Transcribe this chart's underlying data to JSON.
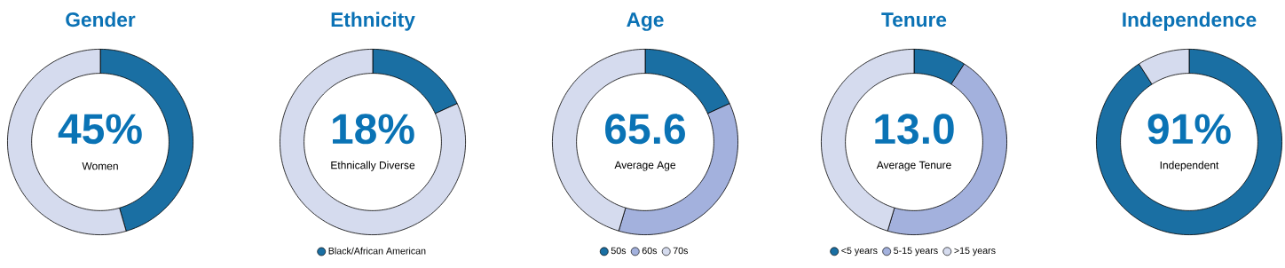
{
  "chart_data": [
    {
      "type": "donut",
      "title": "Gender",
      "categories": [
        null,
        null
      ],
      "values": [
        45.5,
        54.5
      ],
      "colors": [
        "#1a6fa3",
        "#d5dbee"
      ],
      "annotations": [
        "45%",
        "Women"
      ]
    },
    {
      "type": "donut",
      "title": "Ethnicity",
      "categories": [
        "Black/African American",
        null
      ],
      "values": [
        18.2,
        81.8
      ],
      "colors": [
        "#1a6fa3",
        "#d5dbee"
      ],
      "annotations": [
        "18%",
        "Ethnically Diverse"
      ],
      "legend": "bottom"
    },
    {
      "type": "donut",
      "title": "Age",
      "categories": [
        "50s",
        "60s",
        "70s"
      ],
      "values": [
        18.2,
        36.4,
        45.4
      ],
      "colors": [
        "#1a6fa3",
        "#a3b1dd",
        "#d5dbee"
      ],
      "annotations": [
        "65.6",
        "Average Age"
      ],
      "legend": "bottom"
    },
    {
      "type": "donut",
      "title": "Tenure",
      "categories": [
        "<5 years",
        "5-15 years",
        ">15 years"
      ],
      "values": [
        9.1,
        45.5,
        45.4
      ],
      "colors": [
        "#1a6fa3",
        "#a3b1dd",
        "#d5dbee"
      ],
      "annotations": [
        "13.0",
        "Average Tenure"
      ],
      "legend": "bottom"
    },
    {
      "type": "donut",
      "title": "Independence",
      "categories": [
        null,
        null
      ],
      "values": [
        90.9,
        9.1
      ],
      "colors": [
        "#1a6fa3",
        "#d5dbee"
      ],
      "annotations": [
        "91%",
        "Independent"
      ]
    }
  ]
}
